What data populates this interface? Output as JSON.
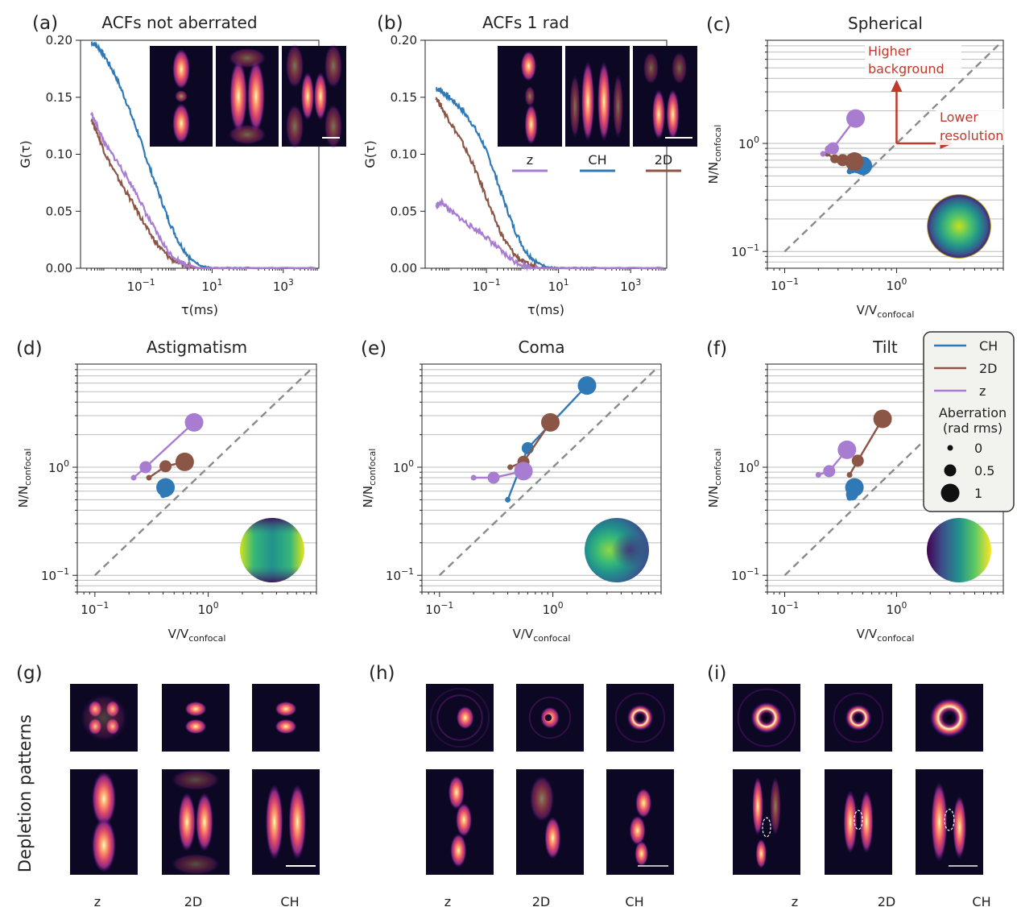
{
  "colors": {
    "CH": "#2f79b6",
    "2D": "#8c5646",
    "z": "#a87cd0",
    "guide": "#8a8a8a",
    "annotation": "#c0392b"
  },
  "legend": {
    "entries": [
      "CH",
      "2D",
      "z"
    ],
    "size_title_1": "Aberration",
    "size_title_2": "(rad rms)",
    "sizes": [
      "0",
      "0.5",
      "1"
    ]
  },
  "annotations": {
    "higher_1": "Higher",
    "higher_2": "background",
    "lower_1": "Lower",
    "lower_2": "resolution"
  },
  "side_label": "Depletion patterns",
  "psf_labels": [
    "z",
    "2D",
    "CH"
  ],
  "chart_data": [
    {
      "id": "a",
      "type": "line",
      "panel_label": "(a)",
      "title": "ACFs not aberrated",
      "xlabel": "τ(ms)",
      "ylabel": "G(τ)",
      "xscale": "log",
      "xlim": [
        0.002,
        10000
      ],
      "ylim": [
        0,
        0.2
      ],
      "xticks": [
        {
          "v": 0.1,
          "b": "10",
          "e": "−1"
        },
        {
          "v": 10,
          "b": "10",
          "e": "1"
        },
        {
          "v": 1000,
          "b": "10",
          "e": "3"
        }
      ],
      "yticks": [
        "0.00",
        "0.05",
        "0.10",
        "0.15",
        "0.20"
      ],
      "yvals": [
        0,
        0.05,
        0.1,
        0.15,
        0.2
      ],
      "series": [
        {
          "key": "CH",
          "x": [
            0.004,
            0.006,
            0.01,
            0.02,
            0.04,
            0.08,
            0.15,
            0.3,
            0.6,
            1.2,
            2.5,
            5,
            10,
            100,
            8000
          ],
          "y": [
            0.198,
            0.195,
            0.185,
            0.168,
            0.145,
            0.12,
            0.094,
            0.068,
            0.042,
            0.022,
            0.008,
            0.002,
            0.0,
            0.0,
            0.0
          ]
        },
        {
          "key": "2D",
          "x": [
            0.004,
            0.006,
            0.01,
            0.02,
            0.04,
            0.08,
            0.15,
            0.3,
            0.6,
            1.2,
            2.5,
            5,
            10,
            100,
            8000
          ],
          "y": [
            0.131,
            0.118,
            0.1,
            0.082,
            0.066,
            0.05,
            0.034,
            0.02,
            0.01,
            0.004,
            0.001,
            0.0,
            0.0,
            0.0,
            0.0
          ]
        },
        {
          "key": "z",
          "x": [
            0.004,
            0.006,
            0.01,
            0.02,
            0.04,
            0.08,
            0.15,
            0.3,
            0.6,
            1.2,
            2.5,
            5,
            10,
            100,
            8000
          ],
          "y": [
            0.136,
            0.124,
            0.108,
            0.095,
            0.08,
            0.064,
            0.046,
            0.029,
            0.014,
            0.006,
            0.002,
            0.0,
            0.0,
            0.0,
            0.0
          ]
        }
      ]
    },
    {
      "id": "b",
      "type": "line",
      "panel_label": "(b)",
      "title": "ACFs 1 rad",
      "xlabel": "τ(ms)",
      "ylabel": "G(τ)",
      "xscale": "log",
      "xlim": [
        0.002,
        10000
      ],
      "ylim": [
        0,
        0.2
      ],
      "xticks": [
        {
          "v": 0.1,
          "b": "10",
          "e": "−1"
        },
        {
          "v": 10,
          "b": "10",
          "e": "1"
        },
        {
          "v": 1000,
          "b": "10",
          "e": "3"
        }
      ],
      "yticks": [
        "0.00",
        "0.05",
        "0.10",
        "0.15",
        "0.20"
      ],
      "yvals": [
        0,
        0.05,
        0.1,
        0.15,
        0.2
      ],
      "inset_labels": [
        "z",
        "CH",
        "2D"
      ],
      "series": [
        {
          "key": "CH",
          "x": [
            0.004,
            0.006,
            0.01,
            0.02,
            0.04,
            0.08,
            0.15,
            0.3,
            0.6,
            1.2,
            2.5,
            5,
            10,
            100,
            8000
          ],
          "y": [
            0.158,
            0.155,
            0.149,
            0.14,
            0.127,
            0.11,
            0.088,
            0.06,
            0.034,
            0.015,
            0.005,
            0.001,
            0.0,
            0.0,
            0.0
          ]
        },
        {
          "key": "2D",
          "x": [
            0.004,
            0.006,
            0.01,
            0.02,
            0.04,
            0.08,
            0.15,
            0.3,
            0.6,
            1.2,
            2.5,
            5,
            10,
            100,
            8000
          ],
          "y": [
            0.15,
            0.14,
            0.128,
            0.112,
            0.093,
            0.07,
            0.047,
            0.026,
            0.012,
            0.004,
            0.001,
            0.0,
            0.0,
            0.0,
            0.0
          ]
        },
        {
          "key": "z",
          "x": [
            0.004,
            0.006,
            0.01,
            0.02,
            0.04,
            0.08,
            0.15,
            0.3,
            0.6,
            1.2,
            2.5,
            5,
            10,
            100,
            8000
          ],
          "y": [
            0.055,
            0.058,
            0.05,
            0.043,
            0.036,
            0.03,
            0.022,
            0.013,
            0.006,
            0.002,
            0.0,
            0.0,
            0.0,
            0.0,
            0.0
          ]
        }
      ]
    },
    {
      "id": "c",
      "type": "scatter",
      "panel_label": "(c)",
      "title": "Spherical",
      "xlabel": "V/V",
      "xlabel_sub": "confocal",
      "ylabel": "N/N",
      "ylabel_sub": "confocal",
      "xscale": "log",
      "yscale": "log",
      "xlim": [
        0.07,
        9
      ],
      "ylim": [
        0.07,
        9
      ],
      "xticks": [
        {
          "v": 0.1,
          "b": "10",
          "e": "−1"
        },
        {
          "v": 1,
          "b": "10",
          "e": "0"
        }
      ],
      "yticks": [
        {
          "v": 0.1,
          "b": "10",
          "e": "−1"
        },
        {
          "v": 1,
          "b": "10",
          "e": "0"
        }
      ],
      "pupil": "spherical",
      "series": [
        {
          "key": "CH",
          "points": [
            [
              0.38,
              0.55,
              0
            ],
            [
              0.4,
              0.58,
              0.25
            ],
            [
              0.45,
              0.6,
              0.5
            ],
            [
              0.5,
              0.62,
              1
            ]
          ]
        },
        {
          "key": "2D",
          "points": [
            [
              0.24,
              0.8,
              0
            ],
            [
              0.28,
              0.72,
              0.25
            ],
            [
              0.33,
              0.7,
              0.5
            ],
            [
              0.42,
              0.68,
              1
            ]
          ]
        },
        {
          "key": "z",
          "points": [
            [
              0.22,
              0.8,
              0
            ],
            [
              0.25,
              0.88,
              0.25
            ],
            [
              0.27,
              0.9,
              0.5
            ],
            [
              0.43,
              1.7,
              1
            ]
          ]
        }
      ]
    },
    {
      "id": "d",
      "type": "scatter",
      "panel_label": "(d)",
      "title": "Astigmatism",
      "xlabel": "V/V",
      "xlabel_sub": "confocal",
      "ylabel": "N/N",
      "ylabel_sub": "confocal",
      "xscale": "log",
      "yscale": "log",
      "xlim": [
        0.07,
        9
      ],
      "ylim": [
        0.07,
        9
      ],
      "xticks": [
        {
          "v": 0.1,
          "b": "10",
          "e": "−1"
        },
        {
          "v": 1,
          "b": "10",
          "e": "0"
        }
      ],
      "yticks": [
        {
          "v": 0.1,
          "b": "10",
          "e": "−1"
        },
        {
          "v": 1,
          "b": "10",
          "e": "0"
        }
      ],
      "pupil": "astigmatism",
      "series": [
        {
          "key": "CH",
          "points": [
            [
              0.4,
              0.55,
              0
            ],
            [
              0.42,
              0.6,
              0.5
            ],
            [
              0.42,
              0.65,
              1
            ]
          ]
        },
        {
          "key": "2D",
          "points": [
            [
              0.3,
              0.8,
              0
            ],
            [
              0.42,
              1.02,
              0.5
            ],
            [
              0.62,
              1.12,
              1
            ]
          ]
        },
        {
          "key": "z",
          "points": [
            [
              0.22,
              0.8,
              0
            ],
            [
              0.28,
              1.0,
              0.5
            ],
            [
              0.75,
              2.6,
              1
            ]
          ]
        }
      ]
    },
    {
      "id": "e",
      "type": "scatter",
      "panel_label": "(e)",
      "title": "Coma",
      "xlabel": "V/V",
      "xlabel_sub": "confocal",
      "ylabel": "N/N",
      "ylabel_sub": "confocal",
      "xscale": "log",
      "yscale": "log",
      "xlim": [
        0.07,
        9
      ],
      "ylim": [
        0.07,
        9
      ],
      "xticks": [
        {
          "v": 0.1,
          "b": "10",
          "e": "−1"
        },
        {
          "v": 1,
          "b": "10",
          "e": "0"
        }
      ],
      "yticks": [
        {
          "v": 0.1,
          "b": "10",
          "e": "−1"
        },
        {
          "v": 1,
          "b": "10",
          "e": "0"
        }
      ],
      "pupil": "coma",
      "series": [
        {
          "key": "CH",
          "points": [
            [
              0.4,
              0.5,
              0
            ],
            [
              0.6,
              1.5,
              0.5
            ],
            [
              2.0,
              5.7,
              1
            ]
          ]
        },
        {
          "key": "2D",
          "points": [
            [
              0.42,
              1.0,
              0
            ],
            [
              0.55,
              1.12,
              0.5
            ],
            [
              0.95,
              2.6,
              1
            ]
          ]
        },
        {
          "key": "z",
          "points": [
            [
              0.2,
              0.8,
              0
            ],
            [
              0.3,
              0.8,
              0.5
            ],
            [
              0.55,
              0.92,
              1
            ]
          ]
        }
      ]
    },
    {
      "id": "f",
      "type": "scatter",
      "panel_label": "(f)",
      "title": "Tilt",
      "xlabel": "V/V",
      "xlabel_sub": "confocal",
      "ylabel": "N/N",
      "ylabel_sub": "confocal",
      "xscale": "log",
      "yscale": "log",
      "xlim": [
        0.07,
        9
      ],
      "ylim": [
        0.07,
        9
      ],
      "xticks": [
        {
          "v": 0.1,
          "b": "10",
          "e": "−1"
        },
        {
          "v": 1,
          "b": "10",
          "e": "0"
        }
      ],
      "yticks": [
        {
          "v": 0.1,
          "b": "10",
          "e": "−1"
        },
        {
          "v": 1,
          "b": "10",
          "e": "0"
        }
      ],
      "pupil": "tilt",
      "series": [
        {
          "key": "CH",
          "points": [
            [
              0.38,
              0.52,
              0
            ],
            [
              0.4,
              0.56,
              0.5
            ],
            [
              0.42,
              0.65,
              1
            ]
          ]
        },
        {
          "key": "2D",
          "points": [
            [
              0.38,
              0.85,
              0
            ],
            [
              0.45,
              1.15,
              0.5
            ],
            [
              0.75,
              2.8,
              1
            ]
          ]
        },
        {
          "key": "z",
          "points": [
            [
              0.2,
              0.85,
              0
            ],
            [
              0.25,
              0.92,
              0.5
            ],
            [
              0.36,
              1.45,
              1
            ]
          ]
        }
      ]
    }
  ],
  "image_panels": [
    {
      "id": "g",
      "panel_label": "(g)"
    },
    {
      "id": "h",
      "panel_label": "(h)"
    },
    {
      "id": "i",
      "panel_label": "(i)"
    }
  ]
}
